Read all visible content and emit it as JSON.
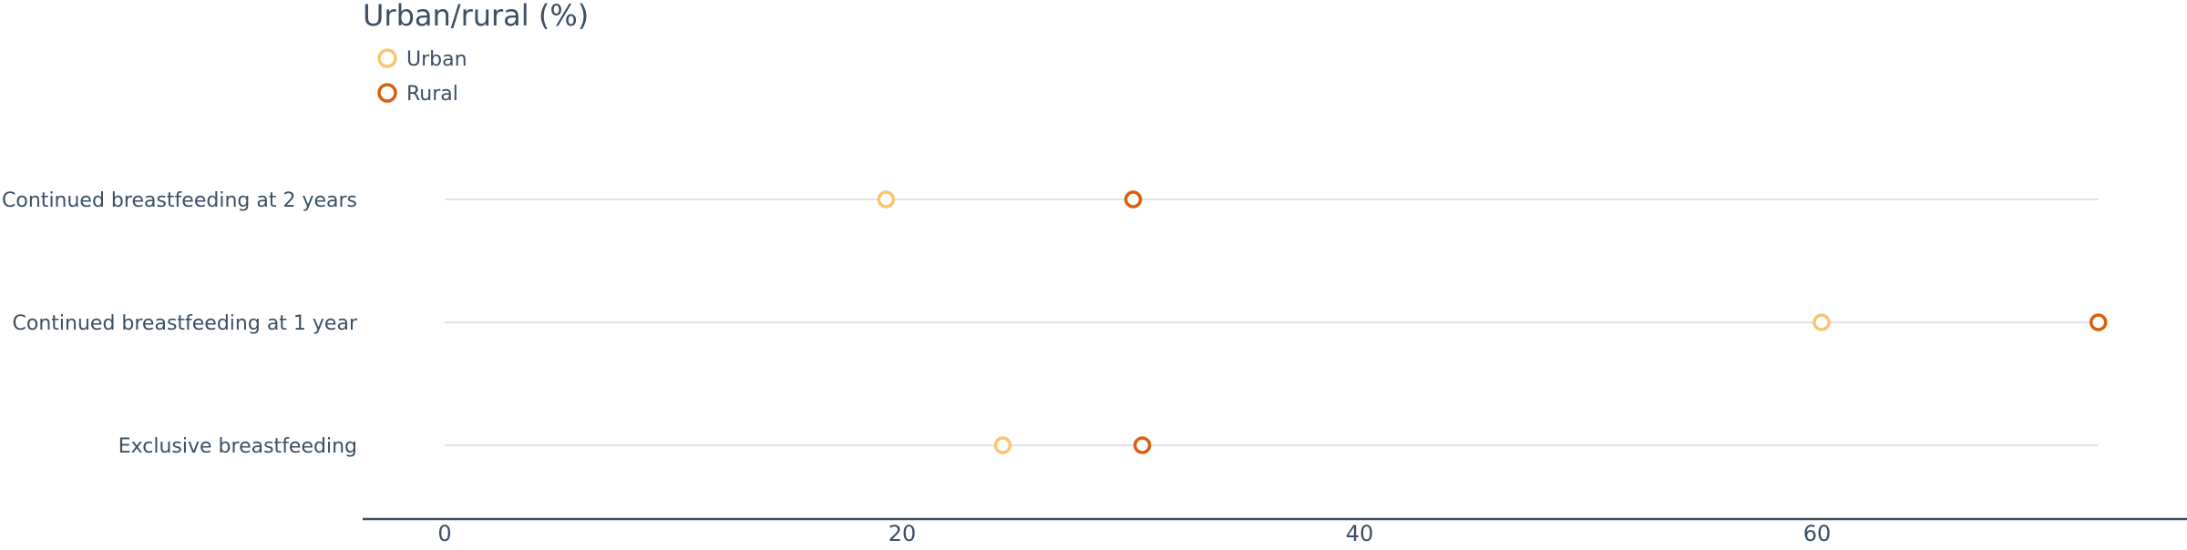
{
  "chart_data": {
    "type": "dot",
    "title": "Urban/rural (%)",
    "categories": [
      "Continued breastfeeding at 2 years",
      "Continued breastfeeding at 1 year",
      "Exclusive breastfeeding"
    ],
    "series": [
      {
        "name": "Urban",
        "color": "#fdc472",
        "values": [
          19.3,
          60.2,
          24.4
        ]
      },
      {
        "name": "Rural",
        "color": "#d95f0e",
        "values": [
          30.1,
          72.3,
          30.5
        ]
      }
    ],
    "x_ticks": [
      0,
      20,
      40,
      60
    ],
    "xlim": [
      0,
      72.3
    ],
    "grid": false,
    "legend_position": "top-left",
    "colors": {
      "text": "#3c4f63",
      "track_line": "#d4d8e8",
      "axis_line": "#3c4f63"
    }
  }
}
